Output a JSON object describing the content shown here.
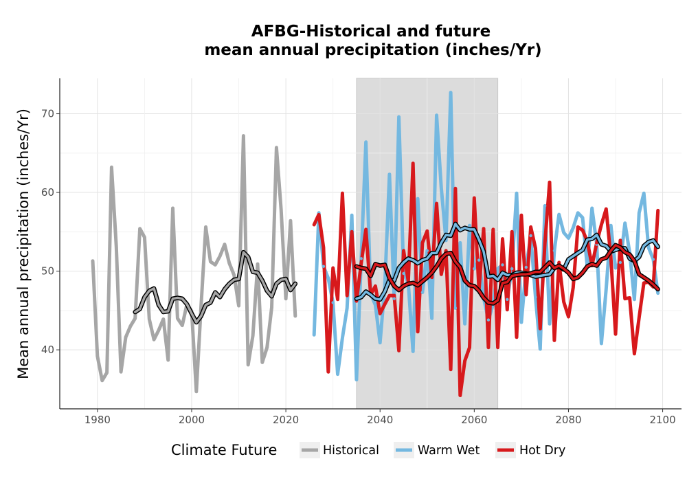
{
  "chart_data": {
    "type": "line",
    "title_line1": "AFBG-Historical and future",
    "title_line2": "mean annual precipitation (inches/Yr)",
    "xlabel": "",
    "ylabel": "Mean annual precipitation (inches/Yr)",
    "xlim": [
      1972,
      2104
    ],
    "ylim": [
      32.5,
      74.5
    ],
    "x_ticks": [
      "1980",
      "2000",
      "2020",
      "2040",
      "2060",
      "2080",
      "2100"
    ],
    "y_ticks": [
      "40",
      "50",
      "60",
      "70"
    ],
    "shaded_period": [
      2035,
      2065
    ],
    "grid": true,
    "legend": {
      "position": "bottom",
      "title": "Climate Future",
      "entries": [
        {
          "label": "Historical",
          "color": "#a6a6a6"
        },
        {
          "label": "Warm Wet",
          "color": "#74b8e0"
        },
        {
          "label": "Hot Dry",
          "color": "#d7191c"
        }
      ]
    },
    "series": [
      {
        "name": "Historical",
        "color": "#a6a6a6",
        "x": [
          1979,
          1980,
          1981,
          1982,
          1983,
          1984,
          1985,
          1986,
          1987,
          1988,
          1989,
          1990,
          1991,
          1992,
          1993,
          1994,
          1995,
          1996,
          1997,
          1998,
          1999,
          2000,
          2001,
          2002,
          2003,
          2004,
          2005,
          2006,
          2007,
          2008,
          2009,
          2010,
          2011,
          2012,
          2013,
          2014,
          2015,
          2016,
          2017,
          2018,
          2019,
          2020,
          2021,
          2022
        ],
        "values": [
          51.3,
          39.2,
          36.1,
          37.1,
          63.2,
          53.1,
          37.2,
          41.6,
          43.0,
          44.0,
          55.4,
          54.3,
          43.9,
          41.3,
          42.5,
          43.9,
          38.7,
          58.0,
          44.0,
          43.1,
          45.8,
          44.9,
          34.7,
          45.6,
          55.6,
          51.2,
          50.8,
          51.9,
          53.4,
          51.0,
          49.5,
          45.6,
          67.2,
          38.1,
          41.8,
          50.9,
          38.4,
          40.3,
          45.4,
          65.7,
          57.8,
          46.5,
          56.4,
          44.3
        ],
        "moving_average_x": [
          1988,
          1989,
          1990,
          1991,
          1992,
          1993,
          1994,
          1995,
          1996,
          1997,
          1998,
          1999,
          2000,
          2001,
          2002,
          2003,
          2004,
          2005,
          2006,
          2007,
          2008,
          2009,
          2010,
          2011,
          2012,
          2013,
          2014,
          2015,
          2016,
          2017,
          2018,
          2019,
          2020,
          2021,
          2022
        ],
        "moving_average": [
          44.8,
          45.2,
          46.7,
          47.5,
          47.8,
          45.7,
          44.8,
          44.9,
          46.5,
          46.6,
          46.5,
          45.8,
          44.6,
          43.5,
          44.3,
          45.7,
          46.0,
          47.3,
          46.7,
          47.7,
          48.4,
          48.9,
          49.0,
          52.4,
          51.8,
          49.9,
          49.8,
          48.8,
          47.5,
          46.8,
          48.4,
          48.9,
          49.0,
          47.6,
          48.4
        ]
      },
      {
        "name": "Warm Wet",
        "color": "#74b8e0",
        "x": [
          2026,
          2027,
          2028,
          2029,
          2030,
          2031,
          2032,
          2033,
          2034,
          2035,
          2036,
          2037,
          2038,
          2039,
          2040,
          2041,
          2042,
          2043,
          2044,
          2045,
          2046,
          2047,
          2048,
          2049,
          2050,
          2051,
          2052,
          2053,
          2054,
          2055,
          2056,
          2057,
          2058,
          2059,
          2060,
          2061,
          2062,
          2063,
          2064,
          2065,
          2066,
          2067,
          2068,
          2069,
          2070,
          2071,
          2072,
          2073,
          2074,
          2075,
          2076,
          2077,
          2078,
          2079,
          2080,
          2081,
          2082,
          2083,
          2084,
          2085,
          2086,
          2087,
          2088,
          2089,
          2090,
          2091,
          2092,
          2093,
          2094,
          2095,
          2096,
          2097,
          2098,
          2099
        ],
        "values": [
          41.9,
          57.4,
          50.6,
          49.1,
          46.0,
          36.9,
          41.5,
          45.3,
          57.1,
          36.2,
          51.6,
          66.4,
          47.1,
          45.7,
          40.9,
          48.1,
          62.3,
          46.5,
          69.6,
          49.7,
          48.5,
          39.8,
          59.2,
          47.3,
          52.6,
          44.0,
          69.8,
          60.6,
          53.9,
          72.7,
          45.3,
          53.6,
          43.3,
          55.8,
          50.3,
          51.4,
          46.6,
          43.8,
          45.8,
          50.3,
          50.8,
          46.4,
          50.3,
          59.9,
          43.5,
          50.5,
          54.5,
          46.7,
          40.1,
          58.3,
          43.3,
          52.6,
          57.2,
          54.9,
          54.2,
          55.5,
          57.4,
          56.8,
          50.5,
          58.0,
          53.4,
          40.8,
          47.7,
          55.8,
          50.4,
          51.1,
          56.1,
          52.3,
          46.4,
          57.4,
          59.9,
          53.0,
          51.5,
          47.2
        ],
        "moving_average_x": [
          2035,
          2036,
          2037,
          2038,
          2039,
          2040,
          2041,
          2042,
          2043,
          2044,
          2045,
          2046,
          2047,
          2048,
          2049,
          2050,
          2051,
          2052,
          2053,
          2054,
          2055,
          2056,
          2057,
          2058,
          2059,
          2060,
          2061,
          2062,
          2063,
          2064,
          2065,
          2066,
          2067,
          2068,
          2069,
          2070,
          2071,
          2072,
          2073,
          2074,
          2075,
          2076,
          2077,
          2078,
          2079,
          2080,
          2081,
          2082,
          2083,
          2084,
          2085,
          2086,
          2087,
          2088,
          2089,
          2090,
          2091,
          2092,
          2093,
          2094,
          2095,
          2096,
          2097,
          2098,
          2099
        ],
        "moving_average": [
          46.5,
          46.7,
          47.4,
          47.0,
          46.5,
          46.4,
          47.4,
          48.9,
          48.8,
          50.4,
          51.1,
          51.6,
          51.4,
          51.0,
          51.4,
          51.6,
          52.3,
          52.3,
          53.6,
          54.6,
          54.5,
          56.0,
          55.2,
          55.5,
          55.3,
          55.3,
          54.0,
          52.5,
          49.3,
          49.4,
          48.9,
          49.8,
          49.5,
          49.5,
          49.8,
          49.8,
          49.7,
          49.5,
          49.3,
          49.4,
          49.5,
          49.6,
          50.4,
          50.6,
          50.2,
          51.5,
          51.9,
          52.3,
          52.7,
          54.0,
          54.1,
          54.6,
          53.4,
          53.2,
          52.5,
          52.7,
          52.9,
          52.9,
          51.6,
          51.3,
          51.8,
          53.2,
          53.7,
          53.9,
          53.1
        ]
      },
      {
        "name": "Hot Dry",
        "color": "#d7191c",
        "x": [
          2026,
          2027,
          2028,
          2029,
          2030,
          2031,
          2032,
          2033,
          2034,
          2035,
          2036,
          2037,
          2038,
          2039,
          2040,
          2041,
          2042,
          2043,
          2044,
          2045,
          2046,
          2047,
          2048,
          2049,
          2050,
          2051,
          2052,
          2053,
          2054,
          2055,
          2056,
          2057,
          2058,
          2059,
          2060,
          2061,
          2062,
          2063,
          2064,
          2065,
          2066,
          2067,
          2068,
          2069,
          2070,
          2071,
          2072,
          2073,
          2074,
          2075,
          2076,
          2077,
          2078,
          2079,
          2080,
          2081,
          2082,
          2083,
          2084,
          2085,
          2086,
          2087,
          2088,
          2089,
          2090,
          2091,
          2092,
          2093,
          2094,
          2095,
          2096,
          2097,
          2098,
          2099
        ],
        "values": [
          55.9,
          57.2,
          53.0,
          37.2,
          50.4,
          46.4,
          59.9,
          46.9,
          55.0,
          46.2,
          51.0,
          55.3,
          47.0,
          48.1,
          44.6,
          45.8,
          46.9,
          46.9,
          39.9,
          52.6,
          48.7,
          63.7,
          42.3,
          53.6,
          55.1,
          49.2,
          58.6,
          49.6,
          52.6,
          37.5,
          60.5,
          34.2,
          38.6,
          40.3,
          59.3,
          47.6,
          55.4,
          40.3,
          55.3,
          40.3,
          54.1,
          45.1,
          55.0,
          41.6,
          57.1,
          47.0,
          55.6,
          52.9,
          42.7,
          53.6,
          61.3,
          41.2,
          51.1,
          46.1,
          44.2,
          47.9,
          55.6,
          55.2,
          53.8,
          50.7,
          53.6,
          55.9,
          57.9,
          51.7,
          42.0,
          53.9,
          46.5,
          46.6,
          39.5,
          44.1,
          48.5,
          48.6,
          48.0,
          57.7
        ],
        "moving_average_x": [
          2035,
          2036,
          2037,
          2038,
          2039,
          2040,
          2041,
          2042,
          2043,
          2044,
          2045,
          2046,
          2047,
          2048,
          2049,
          2050,
          2051,
          2052,
          2053,
          2054,
          2055,
          2056,
          2057,
          2058,
          2059,
          2060,
          2061,
          2062,
          2063,
          2064,
          2065,
          2066,
          2067,
          2068,
          2069,
          2070,
          2071,
          2072,
          2073,
          2074,
          2075,
          2076,
          2077,
          2078,
          2079,
          2080,
          2081,
          2082,
          2083,
          2084,
          2085,
          2086,
          2087,
          2088,
          2089,
          2090,
          2091,
          2092,
          2093,
          2094,
          2095,
          2096,
          2097,
          2098,
          2099
        ],
        "moving_average": [
          50.6,
          50.4,
          50.3,
          49.4,
          50.9,
          50.7,
          50.8,
          49.1,
          48.1,
          47.6,
          48.1,
          48.4,
          48.5,
          48.2,
          48.7,
          49.2,
          49.8,
          50.6,
          51.6,
          52.2,
          52.3,
          51.2,
          50.5,
          48.8,
          48.2,
          48.1,
          47.5,
          46.6,
          46.0,
          45.9,
          46.3,
          48.5,
          48.6,
          49.4,
          49.5,
          49.6,
          49.6,
          49.7,
          49.9,
          49.9,
          50.5,
          51.1,
          50.4,
          50.7,
          50.3,
          49.8,
          49.0,
          49.2,
          49.8,
          50.6,
          50.9,
          50.7,
          51.5,
          51.7,
          52.6,
          53.3,
          53.0,
          52.4,
          52.1,
          51.3,
          49.6,
          49.2,
          48.8,
          48.3,
          47.7
        ]
      }
    ]
  }
}
